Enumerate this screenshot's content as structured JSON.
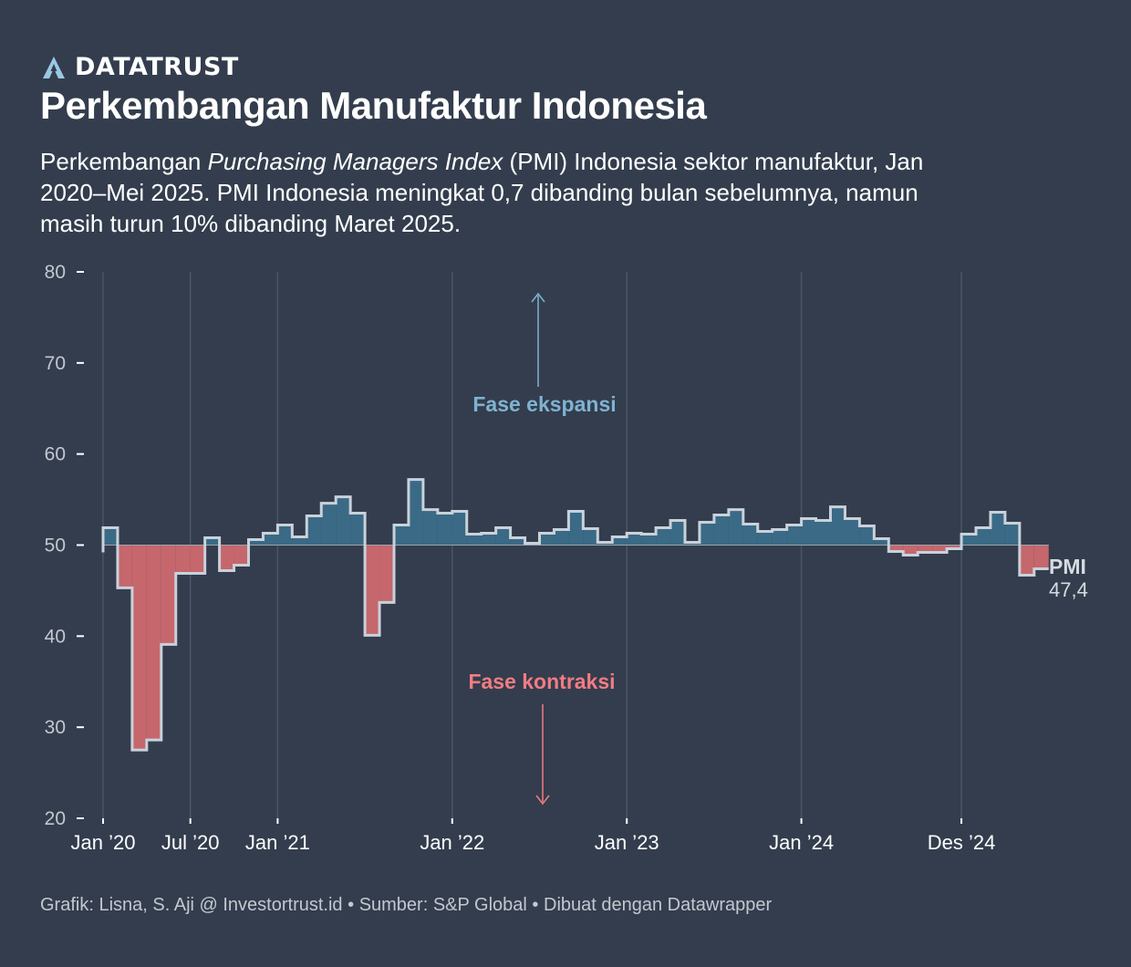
{
  "brand": {
    "name": "DATATRUST",
    "logo_icon": "a-mountain-logo-icon"
  },
  "title": "Perkembangan Manufaktur Indonesia",
  "subtitle": {
    "before": "Perkembangan ",
    "italic": "Purchasing Managers Index",
    "after": " (PMI) Indonesia sektor manufaktur, Jan 2020–Mei 2025. PMI Indonesia meningkat 0,7 dibanding bulan sebelumnya, namun masih turun 10% dibanding Maret 2025."
  },
  "footer": {
    "credit": "Grafik: Lisna, S. Aji @ Investortrust.id",
    "source": "Sumber: S&P Global",
    "tool": "Dibuat dengan Datawrapper",
    "separator": "•"
  },
  "colors": {
    "background": "#333d4d",
    "expansion": "#3a6a86",
    "contraction": "#c5676d",
    "line": "#c9d1da",
    "expansion_label": "#7fb3d1",
    "contraction_label": "#f27c83"
  },
  "chart_data": {
    "type": "area",
    "step": true,
    "baseline": 50,
    "ylim": [
      20,
      80
    ],
    "yticks": [
      20,
      30,
      40,
      50,
      60,
      70,
      80
    ],
    "x_start": "Jan 2020",
    "months": 65,
    "xticks": [
      {
        "index": 0,
        "label": "Jan ’20"
      },
      {
        "index": 6,
        "label": "Jul ’20"
      },
      {
        "index": 12,
        "label": "Jan ’21"
      },
      {
        "index": 24,
        "label": "Jan ’22"
      },
      {
        "index": 36,
        "label": "Jan ’23"
      },
      {
        "index": 48,
        "label": "Jan ’24"
      },
      {
        "index": 59,
        "label": "Des ’24"
      }
    ],
    "series": [
      {
        "name": "PMI",
        "values": [
          51.9,
          45.3,
          27.5,
          28.6,
          39.1,
          46.9,
          46.9,
          50.8,
          47.2,
          47.8,
          50.6,
          51.3,
          52.2,
          50.9,
          53.2,
          54.6,
          55.3,
          53.5,
          40.1,
          43.7,
          52.2,
          57.2,
          53.9,
          53.5,
          53.7,
          51.2,
          51.3,
          51.9,
          50.8,
          50.2,
          51.3,
          51.7,
          53.7,
          51.8,
          50.3,
          50.9,
          51.3,
          51.2,
          51.9,
          52.7,
          50.3,
          52.5,
          53.3,
          53.9,
          52.3,
          51.5,
          51.7,
          52.2,
          52.9,
          52.7,
          54.2,
          52.9,
          52.1,
          50.7,
          49.3,
          48.9,
          49.2,
          49.2,
          49.6,
          51.2,
          51.9,
          53.6,
          52.4,
          46.7,
          47.4
        ]
      }
    ],
    "end_label": {
      "name": "PMI",
      "value": "47,4"
    },
    "annotations": {
      "expansion": "Fase ekspansi",
      "contraction": "Fase kontraksi"
    }
  }
}
